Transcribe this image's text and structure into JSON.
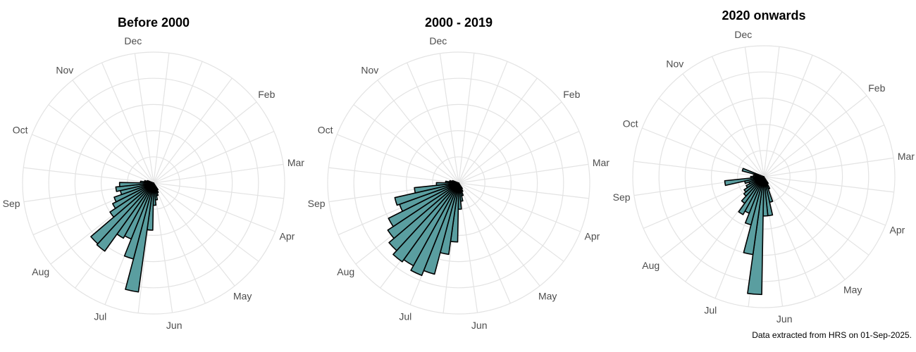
{
  "caption": "Data extracted from HRS on 01-Sep-2025.",
  "colors": {
    "bar_fill": "#5a9ea0",
    "bar_stroke": "#000000",
    "grid": "#e3e3e3",
    "label": "#4d4d4d"
  },
  "chart_data": [
    {
      "type": "polar-bar",
      "title": "Before 2000",
      "angle_labels": [
        "Dec",
        "Feb",
        "Mar",
        "Apr",
        "May",
        "Jun",
        "Jul",
        "Aug",
        "Sep",
        "Oct",
        "Nov"
      ],
      "grid": true,
      "bins_per_year": 52,
      "week_start": [
        18,
        19,
        20,
        21,
        22,
        23,
        24,
        25,
        26,
        27,
        28,
        29,
        30,
        31,
        32,
        33,
        34,
        35,
        36,
        37,
        38
      ],
      "values": [
        0.06,
        0.08,
        0.1,
        0.13,
        0.17,
        0.36,
        0.84,
        0.6,
        0.46,
        0.48,
        0.64,
        0.63,
        0.4,
        0.35,
        0.32,
        0.26,
        0.29,
        0.26,
        0.1,
        0.07,
        0.05
      ]
    },
    {
      "type": "polar-bar",
      "title": "2000 - 2019",
      "angle_labels": [
        "Dec",
        "Feb",
        "Mar",
        "Apr",
        "May",
        "Jun",
        "Jul",
        "Aug",
        "Sep",
        "Oct",
        "Nov"
      ],
      "grid": true,
      "bins_per_year": 52,
      "week_start": [
        18,
        19,
        20,
        21,
        22,
        23,
        24,
        25,
        26,
        27,
        28,
        29,
        30,
        31,
        32,
        33,
        34,
        35,
        36,
        37,
        38
      ],
      "values": [
        0.05,
        0.07,
        0.1,
        0.14,
        0.2,
        0.45,
        0.55,
        0.72,
        0.76,
        0.72,
        0.74,
        0.7,
        0.65,
        0.6,
        0.48,
        0.5,
        0.34,
        0.17,
        0.1,
        0.07,
        0.05
      ]
    },
    {
      "type": "polar-bar",
      "title": "2020 onwards",
      "angle_labels": [
        "Dec",
        "Feb",
        "Mar",
        "Apr",
        "May",
        "Jun",
        "Jul",
        "Aug",
        "Sep",
        "Oct",
        "Nov"
      ],
      "grid": true,
      "bins_per_year": 52,
      "week_start": [
        18,
        19,
        20,
        21,
        22,
        23,
        24,
        25,
        26,
        27,
        28,
        29,
        30,
        31,
        32,
        33,
        34,
        35,
        36,
        37,
        38
      ],
      "values": [
        0.06,
        0.1,
        0.2,
        0.3,
        0.3,
        0.9,
        0.6,
        0.38,
        0.3,
        0.33,
        0.25,
        0.2,
        0.18,
        0.15,
        0.12,
        0.15,
        0.3,
        0.1,
        0.08,
        0.07,
        0.17
      ]
    }
  ]
}
